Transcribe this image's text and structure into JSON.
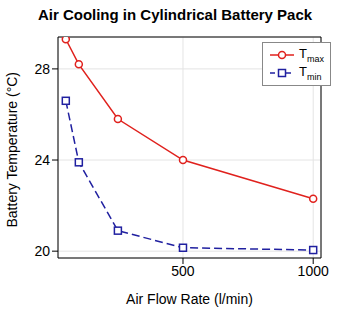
{
  "chart_data": {
    "type": "line",
    "title": "Air Cooling in Cylindrical Battery Pack",
    "x_label": "Air Flow Rate (l/min)",
    "y_label": "Battery Temperature (°C)",
    "x": [
      50,
      100,
      250,
      500,
      1000
    ],
    "series": [
      {
        "name": "Tmax",
        "color": "#e0211d",
        "marker": "circle",
        "line_style": "solid",
        "values": [
          29.3,
          28.2,
          25.8,
          24.0,
          22.3
        ]
      },
      {
        "name": "Tmin",
        "color": "#2020a0",
        "marker": "square",
        "line_style": "dashed",
        "values": [
          26.6,
          23.9,
          20.9,
          20.15,
          20.05
        ]
      }
    ],
    "xlim": [
      20,
      1030
    ],
    "ylim": [
      19.7,
      29.4
    ],
    "xticks": [
      500,
      1000
    ],
    "yticks": [
      20,
      24,
      28
    ],
    "grid": true,
    "legend": "upper right"
  }
}
